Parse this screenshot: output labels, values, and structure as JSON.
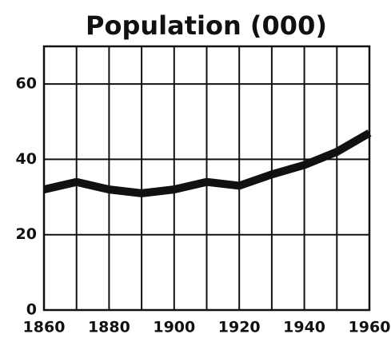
{
  "chart_data": {
    "type": "line",
    "title": "Population (000)",
    "x": [
      1860,
      1870,
      1880,
      1890,
      1900,
      1910,
      1920,
      1930,
      1940,
      1950,
      1960
    ],
    "series": [
      {
        "name": "Population",
        "color": "#111111",
        "values": [
          32,
          34,
          32,
          31,
          32,
          34,
          33,
          36,
          38.5,
          42,
          47
        ]
      }
    ],
    "xlim": [
      1860,
      1960
    ],
    "xticks": [
      1860,
      1880,
      1900,
      1920,
      1940,
      1960
    ],
    "ylim": [
      0,
      70
    ],
    "yticks": [
      0,
      20,
      40,
      60
    ],
    "grid": true
  }
}
